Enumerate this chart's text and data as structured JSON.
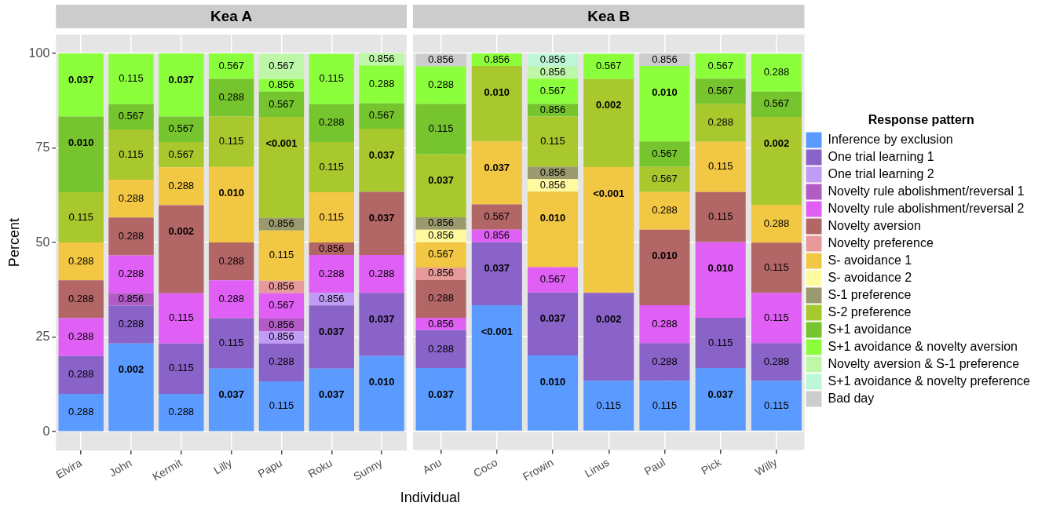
{
  "chart_data": [
    {
      "type": "bar",
      "title": "Kea A",
      "ylabel": "Percent",
      "stacked": true,
      "grid": true,
      "legend": false,
      "ylim": [
        -5,
        105
      ],
      "yticks": [
        0,
        25,
        50,
        75,
        100
      ],
      "categories": [
        "Elvira",
        "John",
        "Kermit",
        "Lilly",
        "Papu",
        "Roku",
        "Sunny"
      ],
      "series": [
        {
          "color": "#5b9bff",
          "values": [
            10,
            23.3,
            10,
            16.7,
            13.3,
            16.7,
            20
          ]
        },
        {
          "color": "#8a63c9",
          "values": [
            10,
            10,
            13.3,
            13.3,
            10,
            16.7,
            16.7
          ]
        },
        {
          "color": "#c09cf7",
          "values": [
            null,
            null,
            null,
            null,
            3.3,
            3.3,
            null
          ]
        },
        {
          "color": "#b05cc4",
          "values": [
            null,
            3.3,
            null,
            null,
            3.3,
            null,
            null
          ]
        },
        {
          "color": "#e060f5",
          "values": [
            10,
            10,
            13.3,
            10,
            6.7,
            10,
            10
          ]
        },
        {
          "color": "#b36666",
          "values": [
            10,
            10,
            23.3,
            10,
            null,
            3.3,
            16.7
          ]
        },
        {
          "color": "#e89a9a",
          "values": [
            null,
            null,
            null,
            null,
            3.3,
            null,
            null
          ]
        },
        {
          "color": "#f2c744",
          "values": [
            10,
            10,
            10,
            20,
            13.3,
            13.3,
            null
          ]
        },
        {
          "color": "#9a9a6e",
          "values": [
            null,
            null,
            null,
            null,
            3.3,
            null,
            null
          ]
        },
        {
          "color": "#a8c82e",
          "values": [
            13.3,
            13.3,
            6.7,
            13.3,
            26.7,
            13.3,
            16.7
          ]
        },
        {
          "color": "#76c42e",
          "values": [
            20,
            6.7,
            6.7,
            10,
            6.7,
            10,
            6.7
          ]
        },
        {
          "color": "#8cff3c",
          "values": [
            16.7,
            13.3,
            16.7,
            6.7,
            3.3,
            13.3,
            10
          ]
        },
        {
          "color": "#bff7a8",
          "values": [
            null,
            null,
            null,
            null,
            6.7,
            null,
            3.3
          ]
        }
      ],
      "annotations": [
        {
          "text": "0.288",
          "x": "Elvira",
          "y": 10
        },
        {
          "text": "0.288",
          "x": "Elvira",
          "y": 20
        },
        {
          "text": "0.288",
          "x": "Elvira",
          "y": 30
        },
        {
          "text": "0.288",
          "x": "Elvira",
          "y": 40
        },
        {
          "text": "0.288",
          "x": "Elvira",
          "y": 50
        },
        {
          "text": "0.115",
          "x": "Elvira",
          "y": 63.3
        },
        {
          "text": "0.010",
          "x": "Elvira",
          "y": 83.3
        },
        {
          "text": "0.037",
          "x": "Elvira",
          "y": 100
        },
        {
          "text": "0.002",
          "x": "John",
          "y": 23.3
        },
        {
          "text": "0.288",
          "x": "John",
          "y": 33.3
        },
        {
          "text": "0.856",
          "x": "John",
          "y": 36.6
        },
        {
          "text": "0.288",
          "x": "John",
          "y": 46.6
        },
        {
          "text": "0.288",
          "x": "John",
          "y": 56.6
        },
        {
          "text": "0.288",
          "x": "John",
          "y": 66.6
        },
        {
          "text": "0.115",
          "x": "John",
          "y": 79.9
        },
        {
          "text": "0.567",
          "x": "John",
          "y": 86.6
        },
        {
          "text": "0.115",
          "x": "John",
          "y": 99.9
        },
        {
          "text": "0.288",
          "x": "Kermit",
          "y": 10
        },
        {
          "text": "0.115",
          "x": "Kermit",
          "y": 23.3
        },
        {
          "text": "0.115",
          "x": "Kermit",
          "y": 36.6
        },
        {
          "text": "0.002",
          "x": "Kermit",
          "y": 59.9
        },
        {
          "text": "0.288",
          "x": "Kermit",
          "y": 69.9
        },
        {
          "text": "0.567",
          "x": "Kermit",
          "y": 76.6
        },
        {
          "text": "0.567",
          "x": "Kermit",
          "y": 83.3
        },
        {
          "text": "0.037",
          "x": "Kermit",
          "y": 100
        },
        {
          "text": "0.037",
          "x": "Lilly",
          "y": 16.7
        },
        {
          "text": "0.115",
          "x": "Lilly",
          "y": 30
        },
        {
          "text": "0.288",
          "x": "Lilly",
          "y": 40
        },
        {
          "text": "0.288",
          "x": "Lilly",
          "y": 50
        },
        {
          "text": "0.010",
          "x": "Lilly",
          "y": 70
        },
        {
          "text": "0.115",
          "x": "Lilly",
          "y": 83.3
        },
        {
          "text": "0.288",
          "x": "Lilly",
          "y": 93.3
        },
        {
          "text": "0.567",
          "x": "Lilly",
          "y": 100
        },
        {
          "text": "0.115",
          "x": "Papu",
          "y": 13.3
        },
        {
          "text": "0.288",
          "x": "Papu",
          "y": 23.3
        },
        {
          "text": "0.856",
          "x": "Papu",
          "y": 26.6
        },
        {
          "text": "0.856",
          "x": "Papu",
          "y": 29.9
        },
        {
          "text": "0.567",
          "x": "Papu",
          "y": 36.6
        },
        {
          "text": "0.856",
          "x": "Papu",
          "y": 39.9
        },
        {
          "text": "0.115",
          "x": "Papu",
          "y": 53.2
        },
        {
          "text": "0.856",
          "x": "Papu",
          "y": 56.5
        },
        {
          "text": "<0.001",
          "x": "Papu",
          "y": 83.2
        },
        {
          "text": "0.567",
          "x": "Papu",
          "y": 89.9
        },
        {
          "text": "0.856",
          "x": "Papu",
          "y": 93.2
        },
        {
          "text": "0.567",
          "x": "Papu",
          "y": 99.9
        },
        {
          "text": "0.037",
          "x": "Roku",
          "y": 16.7
        },
        {
          "text": "0.037",
          "x": "Roku",
          "y": 33.4
        },
        {
          "text": "0.856",
          "x": "Roku",
          "y": 36.7
        },
        {
          "text": "0.288",
          "x": "Roku",
          "y": 46.7
        },
        {
          "text": "0.856",
          "x": "Roku",
          "y": 50
        },
        {
          "text": "0.115",
          "x": "Roku",
          "y": 63.3
        },
        {
          "text": "0.115",
          "x": "Roku",
          "y": 76.6
        },
        {
          "text": "0.288",
          "x": "Roku",
          "y": 86.6
        },
        {
          "text": "0.115",
          "x": "Roku",
          "y": 99.9
        },
        {
          "text": "0.010",
          "x": "Sunny",
          "y": 20
        },
        {
          "text": "0.037",
          "x": "Sunny",
          "y": 36.7
        },
        {
          "text": "0.288",
          "x": "Sunny",
          "y": 46.7
        },
        {
          "text": "0.037",
          "x": "Sunny",
          "y": 63.4
        },
        {
          "text": "0.037",
          "x": "Sunny",
          "y": 80.1
        },
        {
          "text": "0.567",
          "x": "Sunny",
          "y": 86.8
        },
        {
          "text": "0.288",
          "x": "Sunny",
          "y": 96.8
        },
        {
          "text": "0.856",
          "x": "Sunny",
          "y": 100.1
        }
      ]
    },
    {
      "type": "bar",
      "title": "Kea B",
      "xlabel": "Individual",
      "legend_title": "Response pattern",
      "stacked": true,
      "grid": true,
      "legend": "right",
      "tick_labels": "x",
      "ylim": [
        -5,
        105
      ],
      "yticks": [
        0,
        25,
        50,
        75,
        100
      ],
      "categories": [
        "Anu",
        "Coco",
        "Frowin",
        "Linus",
        "Paul",
        "Pick",
        "Willy"
      ],
      "series": [
        {
          "name": "Inference by exclusion",
          "color": "#5b9bff",
          "values": [
            16.7,
            33.3,
            20,
            13.3,
            13.3,
            16.7,
            13.3
          ]
        },
        {
          "name": "One trial learning 1",
          "color": "#8a63c9",
          "values": [
            10,
            16.7,
            16.7,
            23.3,
            10,
            13.3,
            10
          ]
        },
        {
          "name": "One trial learning 2",
          "color": "#c09cf7",
          "values": [
            null,
            null,
            null,
            null,
            null,
            null,
            null
          ]
        },
        {
          "name": "Novelty rule abolishment/reversal 1",
          "color": "#b05cc4",
          "values": [
            null,
            null,
            null,
            null,
            null,
            null,
            null
          ]
        },
        {
          "name": "Novelty rule abolishment/reversal 2",
          "color": "#e060f5",
          "values": [
            3.3,
            3.3,
            6.7,
            null,
            10,
            20,
            13.3
          ]
        },
        {
          "name": "Novelty aversion",
          "color": "#b36666",
          "values": [
            10,
            6.7,
            null,
            null,
            20,
            13.3,
            13.3
          ]
        },
        {
          "name": "Novelty preference",
          "color": "#e89a9a",
          "values": [
            3.3,
            null,
            null,
            null,
            null,
            null,
            null
          ]
        },
        {
          "name": "S- avoidance 1",
          "color": "#f2c744",
          "values": [
            6.7,
            16.7,
            20,
            33.3,
            10,
            13.3,
            10
          ]
        },
        {
          "name": "S- avoidance 2",
          "color": "#fffaa0",
          "values": [
            3.3,
            null,
            3.3,
            null,
            null,
            null,
            null
          ]
        },
        {
          "name": "S-1 preference",
          "color": "#9a9a6e",
          "values": [
            3.3,
            null,
            3.3,
            null,
            null,
            null,
            null
          ]
        },
        {
          "name": "S-2 preference",
          "color": "#a8c82e",
          "values": [
            16.7,
            20,
            13.3,
            23.3,
            6.7,
            10,
            23.3
          ]
        },
        {
          "name": "S+1 avoidance",
          "color": "#76c42e",
          "values": [
            13.3,
            null,
            3.3,
            null,
            6.7,
            6.7,
            6.7
          ]
        },
        {
          "name": "S+1 avoidance & novelty aversion",
          "color": "#8cff3c",
          "values": [
            10,
            3.3,
            6.7,
            6.7,
            20,
            6.7,
            10
          ]
        },
        {
          "name": "Novelty aversion & S-1 preference",
          "color": "#bff7a8",
          "values": [
            null,
            null,
            3.3,
            null,
            null,
            null,
            null
          ]
        },
        {
          "name": "S+1 avoidance & novelty preference",
          "color": "#bdf7d8",
          "values": [
            null,
            null,
            3.3,
            null,
            null,
            null,
            null
          ]
        },
        {
          "name": "Bad day",
          "color": "#cccccc",
          "values": [
            3.3,
            null,
            null,
            null,
            3.3,
            null,
            null
          ]
        }
      ],
      "annotations": [
        {
          "text": "0.037",
          "x": "Anu",
          "y": 16.7
        },
        {
          "text": "0.288",
          "x": "Anu",
          "y": 26.7
        },
        {
          "text": "0.856",
          "x": "Anu",
          "y": 30
        },
        {
          "text": "0.288",
          "x": "Anu",
          "y": 40
        },
        {
          "text": "0.856",
          "x": "Anu",
          "y": 43.3
        },
        {
          "text": "0.567",
          "x": "Anu",
          "y": 50
        },
        {
          "text": "0.856",
          "x": "Anu",
          "y": 53.3
        },
        {
          "text": "0.856",
          "x": "Anu",
          "y": 56.6
        },
        {
          "text": "0.037",
          "x": "Anu",
          "y": 73.3
        },
        {
          "text": "0.115",
          "x": "Anu",
          "y": 86.6
        },
        {
          "text": "0.288",
          "x": "Anu",
          "y": 96.6
        },
        {
          "text": "0.856",
          "x": "Anu",
          "y": 99.9
        },
        {
          "text": "<0.001",
          "x": "Coco",
          "y": 33.3
        },
        {
          "text": "0.037",
          "x": "Coco",
          "y": 50
        },
        {
          "text": "0.856",
          "x": "Coco",
          "y": 53.3
        },
        {
          "text": "0.567",
          "x": "Coco",
          "y": 60
        },
        {
          "text": "0.037",
          "x": "Coco",
          "y": 76.7
        },
        {
          "text": "0.010",
          "x": "Coco",
          "y": 96.7
        },
        {
          "text": "0.856",
          "x": "Coco",
          "y": 100
        },
        {
          "text": "0.010",
          "x": "Frowin",
          "y": 20
        },
        {
          "text": "0.037",
          "x": "Frowin",
          "y": 36.7
        },
        {
          "text": "0.567",
          "x": "Frowin",
          "y": 43.4
        },
        {
          "text": "0.010",
          "x": "Frowin",
          "y": 63.4
        },
        {
          "text": "0.856",
          "x": "Frowin",
          "y": 66.7
        },
        {
          "text": "0.856",
          "x": "Frowin",
          "y": 70
        },
        {
          "text": "0.115",
          "x": "Frowin",
          "y": 83.3
        },
        {
          "text": "0.856",
          "x": "Frowin",
          "y": 86.6
        },
        {
          "text": "0.567",
          "x": "Frowin",
          "y": 93.3
        },
        {
          "text": "0.856",
          "x": "Frowin",
          "y": 96.6
        },
        {
          "text": "0.856",
          "x": "Frowin",
          "y": 99.9
        },
        {
          "text": "0.115",
          "x": "Linus",
          "y": 13.3
        },
        {
          "text": "0.002",
          "x": "Linus",
          "y": 36.6
        },
        {
          "text": "<0.001",
          "x": "Linus",
          "y": 69.9
        },
        {
          "text": "0.002",
          "x": "Linus",
          "y": 93.2
        },
        {
          "text": "0.567",
          "x": "Linus",
          "y": 99.9
        },
        {
          "text": "0.115",
          "x": "Paul",
          "y": 13.3
        },
        {
          "text": "0.288",
          "x": "Paul",
          "y": 23.3
        },
        {
          "text": "0.288",
          "x": "Paul",
          "y": 33.3
        },
        {
          "text": "0.010",
          "x": "Paul",
          "y": 53.3
        },
        {
          "text": "0.288",
          "x": "Paul",
          "y": 63.3
        },
        {
          "text": "0.567",
          "x": "Paul",
          "y": 70
        },
        {
          "text": "0.567",
          "x": "Paul",
          "y": 76.7
        },
        {
          "text": "0.010",
          "x": "Paul",
          "y": 96.7
        },
        {
          "text": "0.856",
          "x": "Paul",
          "y": 100
        },
        {
          "text": "0.037",
          "x": "Pick",
          "y": 16.7
        },
        {
          "text": "0.115",
          "x": "Pick",
          "y": 30
        },
        {
          "text": "0.010",
          "x": "Pick",
          "y": 50
        },
        {
          "text": "0.115",
          "x": "Pick",
          "y": 63.3
        },
        {
          "text": "0.115",
          "x": "Pick",
          "y": 76.6
        },
        {
          "text": "0.288",
          "x": "Pick",
          "y": 86.6
        },
        {
          "text": "0.567",
          "x": "Pick",
          "y": 93.3
        },
        {
          "text": "0.567",
          "x": "Pick",
          "y": 100
        },
        {
          "text": "0.115",
          "x": "Willy",
          "y": 13.3
        },
        {
          "text": "0.288",
          "x": "Willy",
          "y": 23.3
        },
        {
          "text": "0.115",
          "x": "Willy",
          "y": 36.6
        },
        {
          "text": "0.115",
          "x": "Willy",
          "y": 49.9
        },
        {
          "text": "0.288",
          "x": "Willy",
          "y": 59.9
        },
        {
          "text": "0.002",
          "x": "Willy",
          "y": 83.2
        },
        {
          "text": "0.567",
          "x": "Willy",
          "y": 89.9
        },
        {
          "text": "0.288",
          "x": "Willy",
          "y": 99.9
        }
      ]
    }
  ]
}
